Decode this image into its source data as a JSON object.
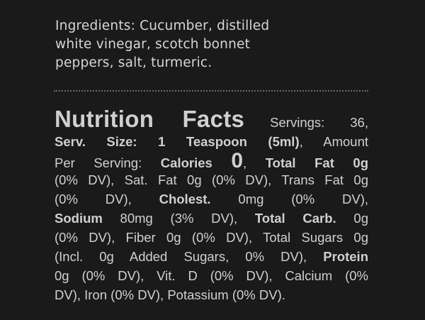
{
  "ingredients": {
    "lines": [
      "Ingredients: Cucumber, distilled",
      "white vinegar, scotch bonnet",
      "peppers, salt, turmeric."
    ]
  },
  "nutrition": {
    "lines": [
      [
        {
          "t": "Nutrition Facts",
          "s": "title"
        },
        {
          "t": " Servings: 36,"
        }
      ],
      [
        {
          "t": "Serv. Size: 1 Teaspoon (5ml)",
          "s": "b"
        },
        {
          "t": ", Amount"
        }
      ],
      [
        {
          "t": "Per Serving: "
        },
        {
          "t": "Calories ",
          "s": "b"
        },
        {
          "t": "0",
          "s": "big"
        },
        {
          "t": ", "
        },
        {
          "t": "Total Fat 0g",
          "s": "b"
        }
      ],
      [
        {
          "t": "(0% DV), Sat. Fat 0g (0% DV), Trans Fat 0g"
        }
      ],
      [
        {
          "t": "(0% DV), "
        },
        {
          "t": "Cholest.",
          "s": "b"
        },
        {
          "t": " 0mg (0% DV),"
        }
      ],
      [
        {
          "t": "Sodium",
          "s": "b"
        },
        {
          "t": " 80mg (3% DV), "
        },
        {
          "t": "Total Carb.",
          "s": "b"
        },
        {
          "t": " 0g"
        }
      ],
      [
        {
          "t": "(0% DV), Fiber 0g (0% DV), Total Sugars 0g"
        }
      ],
      [
        {
          "t": "(Incl. 0g Added Sugars, 0% DV), "
        },
        {
          "t": "Protein",
          "s": "b"
        }
      ],
      [
        {
          "t": "0g (0% DV), Vit. D (0% DV), Calcium (0%"
        }
      ],
      [
        {
          "t": "DV), Iron (0% DV), Potassium (0% DV)."
        }
      ]
    ]
  },
  "colors": {
    "background": "#1a1a1a",
    "text": "#d0d0d0",
    "divider": "#6a6a6a"
  }
}
